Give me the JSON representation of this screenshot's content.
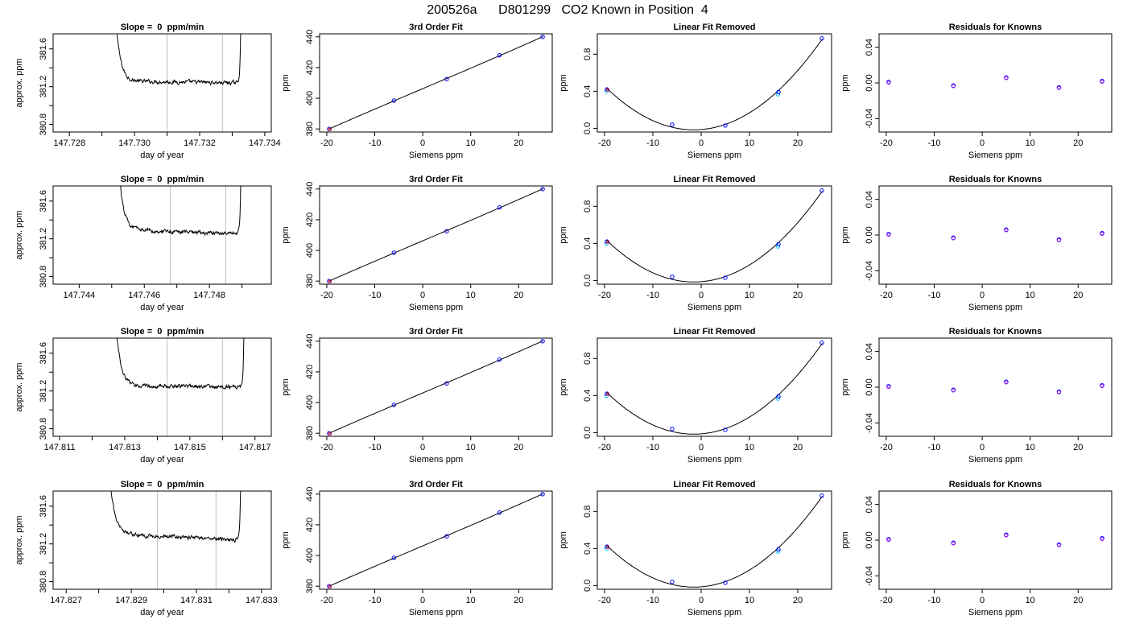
{
  "page_title": "200526a      D801299   CO2 Known in Position  4",
  "colors": {
    "trace": "#000000",
    "window_lines": "#bebebe",
    "point_blue": "#0000ff",
    "point_red": "#ff0000",
    "point_cyan": "#00bfff",
    "point_purple": "#a020f0",
    "fit_line": "#000000"
  },
  "known_points": {
    "siemens_ppm": [
      -19.5,
      -6.0,
      5.0,
      16.0,
      25.0
    ],
    "ppm": [
      380.0,
      398.5,
      412.5,
      428.0,
      440.0
    ],
    "linear_removed": [
      0.42,
      0.04,
      0.03,
      0.39,
      0.97
    ],
    "residuals": [
      0.001,
      -0.003,
      0.006,
      -0.005,
      0.002
    ]
  },
  "chart_data": [
    {
      "panel": "row1-timeseries",
      "type": "line",
      "title": "Slope =  0  ppm/min",
      "xlabel": "day of year",
      "ylabel": "approx. ppm",
      "xlim": [
        147.7275,
        147.7342
      ],
      "ylim": [
        380.72,
        381.76
      ],
      "xticks": [
        "147.728",
        "147.730",
        "147.732",
        "147.734"
      ],
      "xtick_values": [
        147.728,
        147.73,
        147.732,
        147.734
      ],
      "yticks": [
        "380.8",
        "381.2",
        "381.6"
      ],
      "ytick_values": [
        380.8,
        381.2,
        381.6
      ],
      "start": 147.7293,
      "end": 147.7333,
      "level": 381.26,
      "trend": -0.02,
      "window_lines": [
        147.731,
        147.7327
      ],
      "grid": false
    },
    {
      "panel": "row1-fit",
      "type": "scatter",
      "title": "3rd Order Fit",
      "xlabel": "Siemens ppm",
      "ylabel": "ppm",
      "xlim": [
        -21.5,
        27
      ],
      "ylim": [
        378,
        442
      ],
      "xticks": [
        "-20",
        "-10",
        "0",
        "10",
        "20"
      ],
      "xtick_values": [
        -20,
        -10,
        0,
        10,
        20
      ],
      "yticks": [
        "380",
        "400",
        "420",
        "440"
      ],
      "ytick_values": [
        380,
        400,
        420,
        440
      ],
      "points_key": "ppm",
      "curve": "fit",
      "grid": false
    },
    {
      "panel": "row1-linear",
      "type": "scatter",
      "title": "Linear Fit Removed",
      "xlabel": "Siemens ppm",
      "ylabel": "ppm",
      "xlim": [
        -21.5,
        27
      ],
      "ylim": [
        -0.04,
        1.02
      ],
      "xticks": [
        "-20",
        "-10",
        "0",
        "10",
        "20"
      ],
      "xtick_values": [
        -20,
        -10,
        0,
        10,
        20
      ],
      "yticks": [
        "0.0",
        "0.4",
        "0.8"
      ],
      "ytick_values": [
        0.0,
        0.4,
        0.8
      ],
      "points_key": "linear_removed",
      "curve": "quad",
      "grid": false
    },
    {
      "panel": "row1-residuals",
      "type": "scatter",
      "title": "Residuals for Knowns",
      "xlabel": "Siemens ppm",
      "ylabel": "ppm",
      "xlim": [
        -21.5,
        27
      ],
      "ylim": [
        -0.055,
        0.055
      ],
      "xticks": [
        "-20",
        "-10",
        "0",
        "10",
        "20"
      ],
      "xtick_values": [
        -20,
        -10,
        0,
        10,
        20
      ],
      "yticks": [
        "-0.04",
        "0.00",
        "0.04"
      ],
      "ytick_values": [
        -0.04,
        0.0,
        0.04
      ],
      "points_key": "residuals",
      "curve": "none",
      "grid": false
    },
    {
      "panel": "row2-timeseries",
      "type": "line",
      "title": "Slope =  0  ppm/min",
      "xlabel": "day of year",
      "ylabel": "approx. ppm",
      "xlim": [
        147.7432,
        147.7499
      ],
      "ylim": [
        380.72,
        381.76
      ],
      "xticks": [
        "147.744",
        "147.746",
        "147.748"
      ],
      "xtick_values": [
        147.744,
        147.746,
        147.748
      ],
      "yticks": [
        "380.8",
        "381.2",
        "381.6"
      ],
      "ytick_values": [
        380.8,
        381.2,
        381.6
      ],
      "start": 147.7451,
      "end": 147.749,
      "level": 381.3,
      "trend": -0.05,
      "window_lines": [
        147.7468,
        147.7485
      ],
      "grid": false
    },
    {
      "panel": "row2-fit",
      "type": "scatter",
      "title": "3rd Order Fit",
      "xlabel": "Siemens ppm",
      "ylabel": "ppm",
      "xlim": [
        -21.5,
        27
      ],
      "ylim": [
        378,
        442
      ],
      "xticks": [
        "-20",
        "-10",
        "0",
        "10",
        "20"
      ],
      "xtick_values": [
        -20,
        -10,
        0,
        10,
        20
      ],
      "yticks": [
        "380",
        "400",
        "420",
        "440"
      ],
      "ytick_values": [
        380,
        400,
        420,
        440
      ],
      "points_key": "ppm",
      "curve": "fit",
      "grid": false
    },
    {
      "panel": "row2-linear",
      "type": "scatter",
      "title": "Linear Fit Removed",
      "xlabel": "Siemens ppm",
      "ylabel": "ppm",
      "xlim": [
        -21.5,
        27
      ],
      "ylim": [
        -0.04,
        1.02
      ],
      "xticks": [
        "-20",
        "-10",
        "0",
        "10",
        "20"
      ],
      "xtick_values": [
        -20,
        -10,
        0,
        10,
        20
      ],
      "yticks": [
        "0.0",
        "0.4",
        "0.8"
      ],
      "ytick_values": [
        0.0,
        0.4,
        0.8
      ],
      "points_key": "linear_removed",
      "curve": "quad",
      "grid": false
    },
    {
      "panel": "row2-residuals",
      "type": "scatter",
      "title": "Residuals for Knowns",
      "xlabel": "Siemens ppm",
      "ylabel": "ppm",
      "xlim": [
        -21.5,
        27
      ],
      "ylim": [
        -0.055,
        0.055
      ],
      "xticks": [
        "-20",
        "-10",
        "0",
        "10",
        "20"
      ],
      "xtick_values": [
        -20,
        -10,
        0,
        10,
        20
      ],
      "yticks": [
        "-0.04",
        "0.00",
        "0.04"
      ],
      "ytick_values": [
        -0.04,
        0.0,
        0.04
      ],
      "points_key": "residuals",
      "curve": "none",
      "grid": false
    },
    {
      "panel": "row3-timeseries",
      "type": "line",
      "title": "Slope =  0  ppm/min",
      "xlabel": "day of year",
      "ylabel": "approx. ppm",
      "xlim": [
        147.8108,
        147.8175
      ],
      "ylim": [
        380.72,
        381.76
      ],
      "xticks": [
        "147.811",
        "147.813",
        "147.815",
        "147.817"
      ],
      "xtick_values": [
        147.811,
        147.813,
        147.815,
        147.817
      ],
      "yticks": [
        "380.8",
        "381.2",
        "381.6"
      ],
      "ytick_values": [
        380.8,
        381.2,
        381.6
      ],
      "start": 147.8126,
      "end": 147.8167,
      "level": 381.26,
      "trend": -0.02,
      "window_lines": [
        147.8143,
        147.816
      ],
      "grid": false
    },
    {
      "panel": "row3-fit",
      "type": "scatter",
      "title": "3rd Order Fit",
      "xlabel": "Siemens ppm",
      "ylabel": "ppm",
      "xlim": [
        -21.5,
        27
      ],
      "ylim": [
        378,
        442
      ],
      "xticks": [
        "-20",
        "-10",
        "0",
        "10",
        "20"
      ],
      "xtick_values": [
        -20,
        -10,
        0,
        10,
        20
      ],
      "yticks": [
        "380",
        "400",
        "420",
        "440"
      ],
      "ytick_values": [
        380,
        400,
        420,
        440
      ],
      "points_key": "ppm",
      "curve": "fit",
      "grid": false
    },
    {
      "panel": "row3-linear",
      "type": "scatter",
      "title": "Linear Fit Removed",
      "xlabel": "Siemens ppm",
      "ylabel": "ppm",
      "xlim": [
        -21.5,
        27
      ],
      "ylim": [
        -0.04,
        1.02
      ],
      "xticks": [
        "-20",
        "-10",
        "0",
        "10",
        "20"
      ],
      "xtick_values": [
        -20,
        -10,
        0,
        10,
        20
      ],
      "yticks": [
        "0.0",
        "0.4",
        "0.8"
      ],
      "ytick_values": [
        0.0,
        0.4,
        0.8
      ],
      "points_key": "linear_removed",
      "curve": "quad",
      "grid": false
    },
    {
      "panel": "row3-residuals",
      "type": "scatter",
      "title": "Residuals for Knowns",
      "xlabel": "Siemens ppm",
      "ylabel": "ppm",
      "xlim": [
        -21.5,
        27
      ],
      "ylim": [
        -0.055,
        0.055
      ],
      "xticks": [
        "-20",
        "-10",
        "0",
        "10",
        "20"
      ],
      "xtick_values": [
        -20,
        -10,
        0,
        10,
        20
      ],
      "yticks": [
        "-0.04",
        "0.00",
        "0.04"
      ],
      "ytick_values": [
        -0.04,
        0.0,
        0.04
      ],
      "points_key": "residuals",
      "curve": "none",
      "grid": false
    },
    {
      "panel": "row4-timeseries",
      "type": "line",
      "title": "Slope =  0  ppm/min",
      "xlabel": "day of year",
      "ylabel": "approx. ppm",
      "xlim": [
        147.8266,
        147.8333
      ],
      "ylim": [
        380.72,
        381.76
      ],
      "xticks": [
        "147.827",
        "147.829",
        "147.831",
        "147.833"
      ],
      "xtick_values": [
        147.827,
        147.829,
        147.831,
        147.833
      ],
      "yticks": [
        "380.8",
        "381.2",
        "381.6"
      ],
      "ytick_values": [
        380.8,
        381.2,
        381.6
      ],
      "start": 147.8282,
      "end": 147.8324,
      "level": 381.31,
      "trend": -0.07,
      "window_lines": [
        147.8298,
        147.8316
      ],
      "grid": false
    },
    {
      "panel": "row4-fit",
      "type": "scatter",
      "title": "3rd Order Fit",
      "xlabel": "Siemens ppm",
      "ylabel": "ppm",
      "xlim": [
        -21.5,
        27
      ],
      "ylim": [
        378,
        442
      ],
      "xticks": [
        "-20",
        "-10",
        "0",
        "10",
        "20"
      ],
      "xtick_values": [
        -20,
        -10,
        0,
        10,
        20
      ],
      "yticks": [
        "380",
        "400",
        "420",
        "440"
      ],
      "ytick_values": [
        380,
        400,
        420,
        440
      ],
      "points_key": "ppm",
      "curve": "fit",
      "grid": false
    },
    {
      "panel": "row4-linear",
      "type": "scatter",
      "title": "Linear Fit Removed",
      "xlabel": "Siemens ppm",
      "ylabel": "ppm",
      "xlim": [
        -21.5,
        27
      ],
      "ylim": [
        -0.04,
        1.02
      ],
      "xticks": [
        "-20",
        "-10",
        "0",
        "10",
        "20"
      ],
      "xtick_values": [
        -20,
        -10,
        0,
        10,
        20
      ],
      "yticks": [
        "0.0",
        "0.4",
        "0.8"
      ],
      "ytick_values": [
        0.0,
        0.4,
        0.8
      ],
      "points_key": "linear_removed",
      "curve": "quad",
      "grid": false
    },
    {
      "panel": "row4-residuals",
      "type": "scatter",
      "title": "Residuals for Knowns",
      "xlabel": "Siemens ppm",
      "ylabel": "ppm",
      "xlim": [
        -21.5,
        27
      ],
      "ylim": [
        -0.055,
        0.055
      ],
      "xticks": [
        "-20",
        "-10",
        "0",
        "10",
        "20"
      ],
      "xtick_values": [
        -20,
        -10,
        0,
        10,
        20
      ],
      "yticks": [
        "-0.04",
        "0.00",
        "0.04"
      ],
      "ytick_values": [
        -0.04,
        0.0,
        0.04
      ],
      "points_key": "residuals",
      "curve": "none",
      "grid": false
    }
  ]
}
